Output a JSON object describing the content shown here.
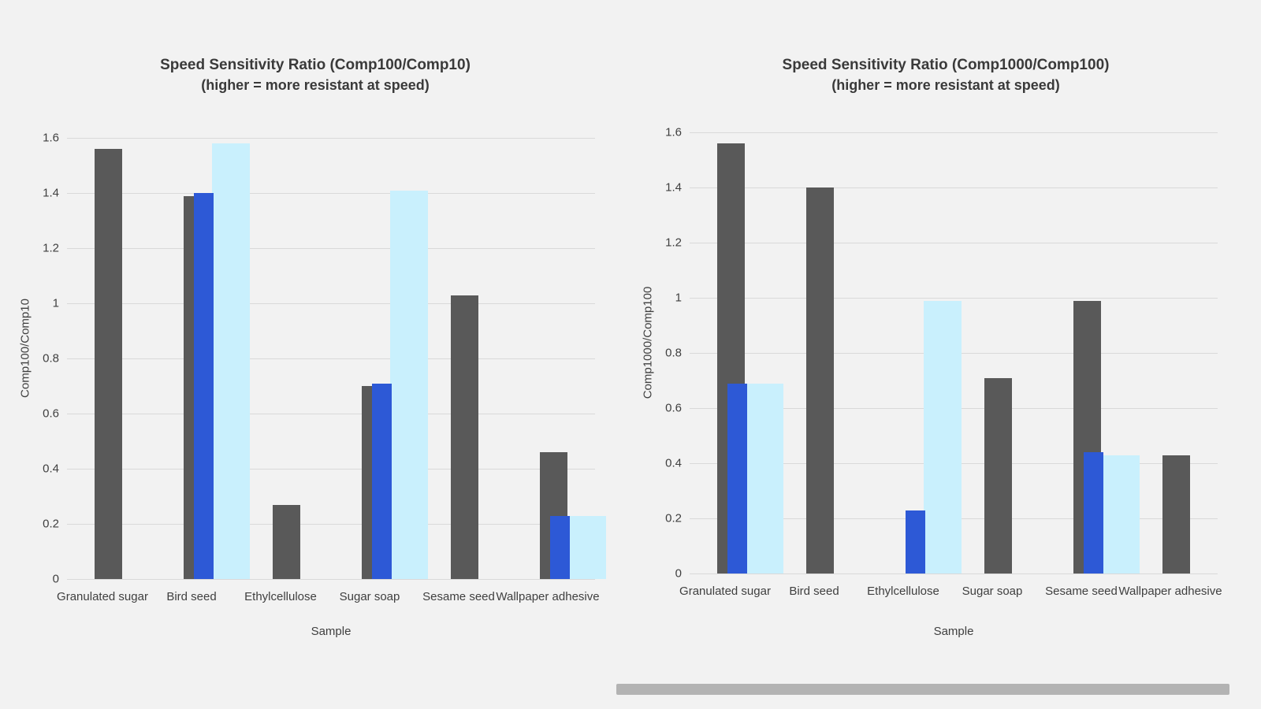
{
  "page": {
    "background": "#f2f2f2",
    "text_color": "#3a3a3a",
    "grid_color": "#d9d9d9",
    "scrollbar_color": "#b3b3b3"
  },
  "chart_data": [
    {
      "type": "bar",
      "title": "Speed Sensitivity Ratio (Comp100/Comp10)",
      "subtitle": "(higher = more resistant at speed)",
      "xlabel": "Sample",
      "ylabel": "Comp100/Comp10",
      "categories": [
        "Granulated sugar",
        "Bird seed",
        "Ethylcellulose",
        "Sugar soap",
        "Sesame seed",
        "Wallpaper adhesive"
      ],
      "series": [
        {
          "id": "gray",
          "color": "#595959",
          "values": [
            1.56,
            1.39,
            0.27,
            0.7,
            1.03,
            0.46
          ]
        },
        {
          "id": "blue",
          "color": "#2d59d6",
          "values": [
            null,
            1.4,
            null,
            0.71,
            null,
            0.23
          ]
        },
        {
          "id": "lightblue",
          "color": "#c9f0fd",
          "values": [
            null,
            1.58,
            null,
            1.41,
            null,
            0.23
          ]
        }
      ],
      "ylim": [
        0,
        1.6
      ],
      "yticks": [
        "0",
        "0.2",
        "0.4",
        "0.6",
        "0.8",
        "1",
        "1.2",
        "1.4",
        "1.6"
      ],
      "grid": "horizontal",
      "legend": "none"
    },
    {
      "type": "bar",
      "title": "Speed Sensitivity Ratio (Comp1000/Comp100)",
      "subtitle": "(higher = more resistant at speed)",
      "xlabel": "Sample",
      "ylabel": "Comp1000/Comp100",
      "categories": [
        "Granulated sugar",
        "Bird seed",
        "Ethylcellulose",
        "Sugar soap",
        "Sesame seed",
        "Wallpaper adhesive"
      ],
      "series": [
        {
          "id": "gray",
          "color": "#595959",
          "values": [
            1.56,
            1.4,
            null,
            0.71,
            0.99,
            0.43
          ]
        },
        {
          "id": "blue",
          "color": "#2d59d6",
          "values": [
            0.69,
            null,
            0.23,
            null,
            0.44,
            null
          ]
        },
        {
          "id": "lightblue",
          "color": "#c9f0fd",
          "values": [
            0.69,
            null,
            0.99,
            null,
            0.43,
            null
          ]
        }
      ],
      "ylim": [
        0,
        1.6
      ],
      "yticks": [
        "0",
        "0.2",
        "0.4",
        "0.6",
        "0.8",
        "1",
        "1.2",
        "1.4",
        "1.6"
      ],
      "grid": "horizontal",
      "legend": "none"
    }
  ]
}
